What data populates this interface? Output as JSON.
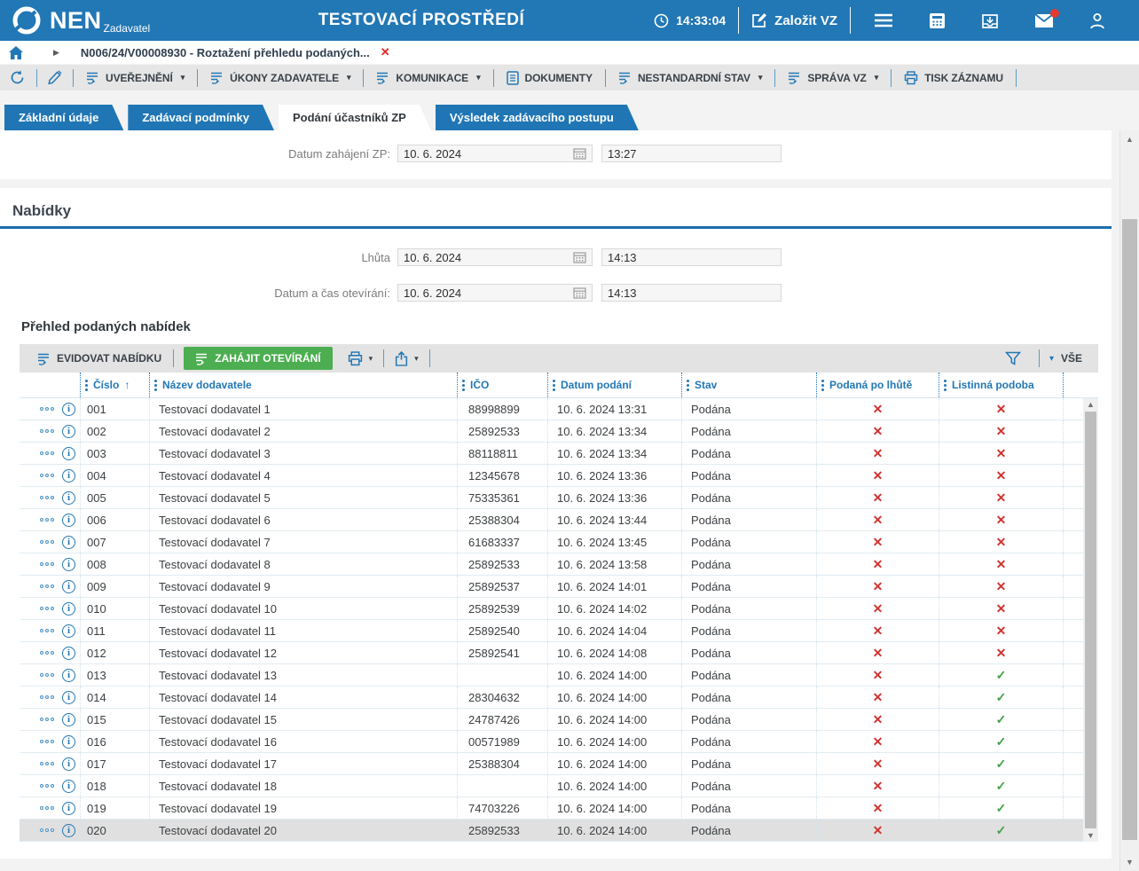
{
  "header": {
    "logo_text": "NEN",
    "logo_subtitle": "Zadavatel",
    "title": "TESTOVACÍ PROSTŘEDÍ",
    "clock_time": "14:33:04",
    "create_vz_label": "Založit VZ"
  },
  "breadcrumb": {
    "item": "N006/24/V00008930 - Roztažení přehledu podaných..."
  },
  "toolbar": {
    "items": [
      {
        "label": "UVEŘEJNĚNÍ",
        "icon": "list-action",
        "dropdown": true
      },
      {
        "label": "ÚKONY ZADAVATELE",
        "icon": "list-action",
        "dropdown": true
      },
      {
        "label": "KOMUNIKACE",
        "icon": "list-action",
        "dropdown": true
      },
      {
        "label": "DOKUMENTY",
        "icon": "document",
        "dropdown": false
      },
      {
        "label": "NESTANDARDNÍ STAV",
        "icon": "list-action",
        "dropdown": true
      },
      {
        "label": "SPRÁVA VZ",
        "icon": "list-action",
        "dropdown": true
      },
      {
        "label": "TISK ZÁZNAMU",
        "icon": "printer",
        "dropdown": false
      }
    ]
  },
  "tabs": [
    {
      "label": "Základní údaje",
      "active": false
    },
    {
      "label": "Zadávací podmínky",
      "active": false
    },
    {
      "label": "Podání účastníků ZP",
      "active": true
    },
    {
      "label": "Výsledek zadávacího postupu",
      "active": false
    }
  ],
  "form": {
    "datum_zahajeni": {
      "label": "Datum zahájení ZP:",
      "date": "10. 6. 2024",
      "time": "13:27"
    },
    "section_title": "Nabídky",
    "lhuta": {
      "label": "Lhůta",
      "date": "10. 6. 2024",
      "time": "14:13"
    },
    "oteviranie": {
      "label": "Datum a čas otevírání:",
      "date": "10. 6. 2024",
      "time": "14:13"
    }
  },
  "table_section": {
    "title": "Přehled podaných nabídek",
    "evidovat_label": "EVIDOVAT NABÍDKU",
    "zahajit_label": "ZAHÁJIT OTEVÍRÁNÍ",
    "vse_label": "VŠE"
  },
  "table": {
    "columns": [
      "Číslo",
      "Název dodavatele",
      "IČO",
      "Datum podání",
      "Stav",
      "Podaná po lhůtě",
      "Listinná podoba"
    ],
    "sort_column": "Číslo",
    "rows": [
      {
        "cislo": "001",
        "nazev": "Testovací dodavatel 1",
        "ico": "88998899",
        "datum": "10. 6. 2024 13:31",
        "stav": "Podána",
        "podana_po_lhute": "cross",
        "listinna_podoba": "cross",
        "selected": false
      },
      {
        "cislo": "002",
        "nazev": "Testovací dodavatel 2",
        "ico": "25892533",
        "datum": "10. 6. 2024 13:34",
        "stav": "Podána",
        "podana_po_lhute": "cross",
        "listinna_podoba": "cross",
        "selected": false
      },
      {
        "cislo": "003",
        "nazev": "Testovací dodavatel 3",
        "ico": "88118811",
        "datum": "10. 6. 2024 13:34",
        "stav": "Podána",
        "podana_po_lhute": "cross",
        "listinna_podoba": "cross",
        "selected": false
      },
      {
        "cislo": "004",
        "nazev": "Testovací dodavatel 4",
        "ico": "12345678",
        "datum": "10. 6. 2024 13:36",
        "stav": "Podána",
        "podana_po_lhute": "cross",
        "listinna_podoba": "cross",
        "selected": false
      },
      {
        "cislo": "005",
        "nazev": "Testovací dodavatel 5",
        "ico": "75335361",
        "datum": "10. 6. 2024 13:36",
        "stav": "Podána",
        "podana_po_lhute": "cross",
        "listinna_podoba": "cross",
        "selected": false
      },
      {
        "cislo": "006",
        "nazev": "Testovací dodavatel 6",
        "ico": "25388304",
        "datum": "10. 6. 2024 13:44",
        "stav": "Podána",
        "podana_po_lhute": "cross",
        "listinna_podoba": "cross",
        "selected": false
      },
      {
        "cislo": "007",
        "nazev": "Testovací dodavatel 7",
        "ico": "61683337",
        "datum": "10. 6. 2024 13:45",
        "stav": "Podána",
        "podana_po_lhute": "cross",
        "listinna_podoba": "cross",
        "selected": false
      },
      {
        "cislo": "008",
        "nazev": "Testovací dodavatel 8",
        "ico": "25892533",
        "datum": "10. 6. 2024 13:58",
        "stav": "Podána",
        "podana_po_lhute": "cross",
        "listinna_podoba": "cross",
        "selected": false
      },
      {
        "cislo": "009",
        "nazev": "Testovací dodavatel 9",
        "ico": "25892537",
        "datum": "10. 6. 2024 14:01",
        "stav": "Podána",
        "podana_po_lhute": "cross",
        "listinna_podoba": "cross",
        "selected": false
      },
      {
        "cislo": "010",
        "nazev": "Testovací dodavatel 10",
        "ico": "25892539",
        "datum": "10. 6. 2024 14:02",
        "stav": "Podána",
        "podana_po_lhute": "cross",
        "listinna_podoba": "cross",
        "selected": false
      },
      {
        "cislo": "011",
        "nazev": "Testovací dodavatel 11",
        "ico": "25892540",
        "datum": "10. 6. 2024 14:04",
        "stav": "Podána",
        "podana_po_lhute": "cross",
        "listinna_podoba": "cross",
        "selected": false
      },
      {
        "cislo": "012",
        "nazev": "Testovací dodavatel 12",
        "ico": "25892541",
        "datum": "10. 6. 2024 14:08",
        "stav": "Podána",
        "podana_po_lhute": "cross",
        "listinna_podoba": "cross",
        "selected": false
      },
      {
        "cislo": "013",
        "nazev": "Testovací dodavatel 13",
        "ico": "",
        "datum": "10. 6. 2024 14:00",
        "stav": "Podána",
        "podana_po_lhute": "cross",
        "listinna_podoba": "check",
        "selected": false
      },
      {
        "cislo": "014",
        "nazev": "Testovací dodavatel 14",
        "ico": "28304632",
        "datum": "10. 6. 2024 14:00",
        "stav": "Podána",
        "podana_po_lhute": "cross",
        "listinna_podoba": "check",
        "selected": false
      },
      {
        "cislo": "015",
        "nazev": "Testovací dodavatel 15",
        "ico": "24787426",
        "datum": "10. 6. 2024 14:00",
        "stav": "Podána",
        "podana_po_lhute": "cross",
        "listinna_podoba": "check",
        "selected": false
      },
      {
        "cislo": "016",
        "nazev": "Testovací dodavatel 16",
        "ico": "00571989",
        "datum": "10. 6. 2024 14:00",
        "stav": "Podána",
        "podana_po_lhute": "cross",
        "listinna_podoba": "check",
        "selected": false
      },
      {
        "cislo": "017",
        "nazev": "Testovací dodavatel 17",
        "ico": "25388304",
        "datum": "10. 6. 2024 14:00",
        "stav": "Podána",
        "podana_po_lhute": "cross",
        "listinna_podoba": "check",
        "selected": false
      },
      {
        "cislo": "018",
        "nazev": "Testovací dodavatel 18",
        "ico": "",
        "datum": "10. 6. 2024 14:00",
        "stav": "Podána",
        "podana_po_lhute": "cross",
        "listinna_podoba": "check",
        "selected": false
      },
      {
        "cislo": "019",
        "nazev": "Testovací dodavatel 19",
        "ico": "74703226",
        "datum": "10. 6. 2024 14:00",
        "stav": "Podána",
        "podana_po_lhute": "cross",
        "listinna_podoba": "check",
        "selected": false
      },
      {
        "cislo": "020",
        "nazev": "Testovací dodavatel 20",
        "ico": "25892533",
        "datum": "10. 6. 2024 14:00",
        "stav": "Podána",
        "podana_po_lhute": "cross",
        "listinna_podoba": "check",
        "selected": true
      }
    ]
  },
  "icons": {
    "cross": "✕",
    "check": "✓",
    "dropdown": "▾",
    "breadcrumb_arrow": "▶",
    "sort_asc": "↑"
  },
  "colors": {
    "header_blue": "#2277b5",
    "accent_blue": "#2076b4",
    "green_button": "#4cae51",
    "red_mark": "#d23230",
    "green_mark": "#43a047"
  }
}
